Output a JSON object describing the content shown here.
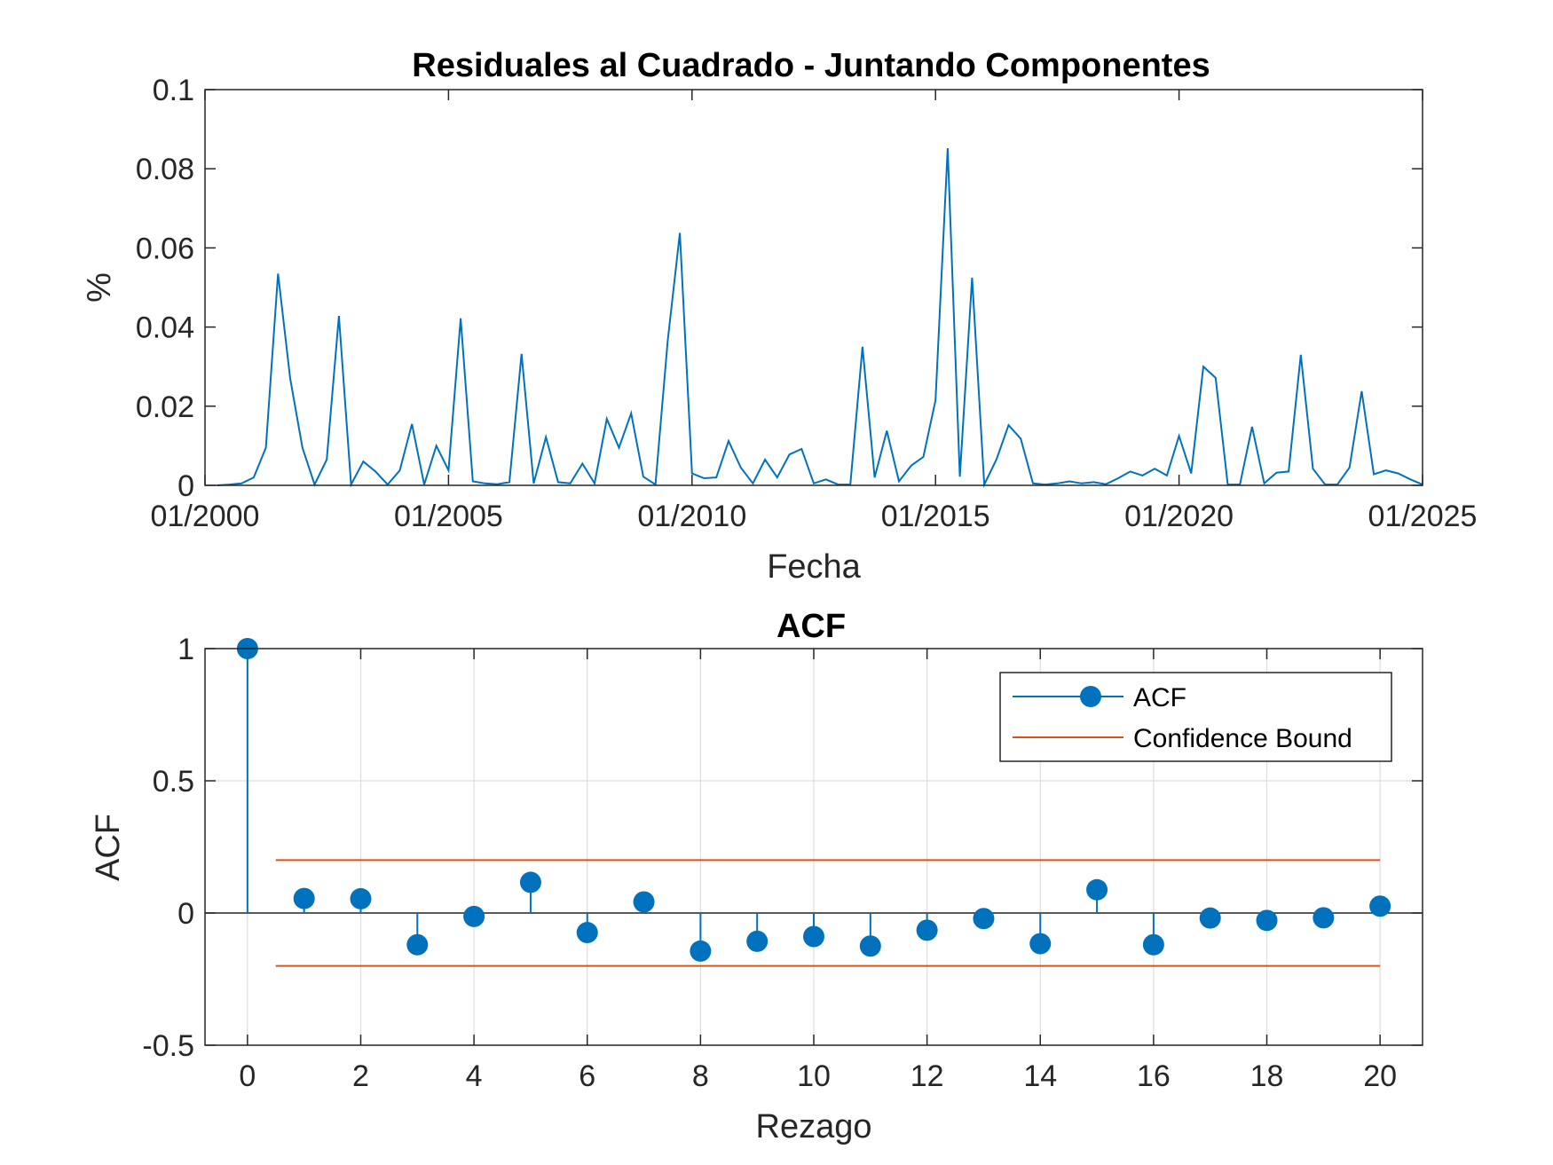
{
  "chart_data": [
    {
      "type": "line",
      "title": "Residuales al Cuadrado - Juntando Componentes",
      "xlabel": "Fecha",
      "ylabel": "%",
      "x_tick_labels": [
        "01/2000",
        "01/2005",
        "01/2010",
        "01/2015",
        "01/2020",
        "01/2025"
      ],
      "y_tick_labels": [
        "0",
        "0.02",
        "0.04",
        "0.06",
        "0.08",
        "0.1"
      ],
      "xlim": [
        "2000-01",
        "2025-01"
      ],
      "ylim": [
        0,
        0.1
      ],
      "grid": false,
      "series": [
        {
          "color": "#0072BD",
          "points": [
            [
              "2000-04",
              0.0
            ],
            [
              "2000-07",
              0.0002
            ],
            [
              "2000-10",
              0.0005
            ],
            [
              "2001-01",
              0.002
            ],
            [
              "2001-04",
              0.0095
            ],
            [
              "2001-07",
              0.0535
            ],
            [
              "2001-10",
              0.027
            ],
            [
              "2002-01",
              0.0095
            ],
            [
              "2002-04",
              0.0002
            ],
            [
              "2002-07",
              0.0065
            ],
            [
              "2002-10",
              0.0428
            ],
            [
              "2003-01",
              0.0002
            ],
            [
              "2003-04",
              0.006
            ],
            [
              "2003-07",
              0.0035
            ],
            [
              "2003-10",
              0.0002
            ],
            [
              "2004-01",
              0.0038
            ],
            [
              "2004-04",
              0.0155
            ],
            [
              "2004-07",
              0.0002
            ],
            [
              "2004-10",
              0.01
            ],
            [
              "2005-01",
              0.0038
            ],
            [
              "2005-04",
              0.0422
            ],
            [
              "2005-07",
              0.001
            ],
            [
              "2005-10",
              0.0005
            ],
            [
              "2006-01",
              0.0003
            ],
            [
              "2006-04",
              0.0008
            ],
            [
              "2006-07",
              0.0332
            ],
            [
              "2006-10",
              0.0005
            ],
            [
              "2007-01",
              0.0122
            ],
            [
              "2007-04",
              0.0008
            ],
            [
              "2007-07",
              0.0005
            ],
            [
              "2007-10",
              0.0055
            ],
            [
              "2008-01",
              0.0005
            ],
            [
              "2008-04",
              0.0168
            ],
            [
              "2008-07",
              0.0095
            ],
            [
              "2008-10",
              0.0182
            ],
            [
              "2009-01",
              0.0022
            ],
            [
              "2009-04",
              0.0002
            ],
            [
              "2009-07",
              0.0365
            ],
            [
              "2009-10",
              0.0638
            ],
            [
              "2010-01",
              0.003
            ],
            [
              "2010-04",
              0.0018
            ],
            [
              "2010-07",
              0.002
            ],
            [
              "2010-10",
              0.0112
            ],
            [
              "2011-01",
              0.0045
            ],
            [
              "2011-04",
              0.0005
            ],
            [
              "2011-07",
              0.0065
            ],
            [
              "2011-10",
              0.002
            ],
            [
              "2012-01",
              0.0078
            ],
            [
              "2012-04",
              0.0092
            ],
            [
              "2012-07",
              0.0005
            ],
            [
              "2012-10",
              0.0015
            ],
            [
              "2013-01",
              0.0002
            ],
            [
              "2013-04",
              0.0002
            ],
            [
              "2013-07",
              0.035
            ],
            [
              "2013-10",
              0.002
            ],
            [
              "2014-01",
              0.0138
            ],
            [
              "2014-04",
              0.001
            ],
            [
              "2014-07",
              0.005
            ],
            [
              "2014-10",
              0.0072
            ],
            [
              "2015-01",
              0.0215
            ],
            [
              "2015-04",
              0.0852
            ],
            [
              "2015-07",
              0.0022
            ],
            [
              "2015-10",
              0.0525
            ],
            [
              "2016-01",
              0.0002
            ],
            [
              "2016-04",
              0.0065
            ],
            [
              "2016-07",
              0.0152
            ],
            [
              "2016-10",
              0.0118
            ],
            [
              "2017-01",
              0.0005
            ],
            [
              "2017-04",
              0.0002
            ],
            [
              "2017-07",
              0.0005
            ],
            [
              "2017-10",
              0.001
            ],
            [
              "2018-01",
              0.0005
            ],
            [
              "2018-04",
              0.0008
            ],
            [
              "2018-07",
              0.0003
            ],
            [
              "2018-10",
              0.0018
            ],
            [
              "2019-01",
              0.0035
            ],
            [
              "2019-04",
              0.0025
            ],
            [
              "2019-07",
              0.0042
            ],
            [
              "2019-10",
              0.0025
            ],
            [
              "2020-01",
              0.0125
            ],
            [
              "2020-04",
              0.003
            ],
            [
              "2020-07",
              0.03
            ],
            [
              "2020-10",
              0.0272
            ],
            [
              "2021-01",
              0.0002
            ],
            [
              "2021-04",
              0.0002
            ],
            [
              "2021-07",
              0.0148
            ],
            [
              "2021-10",
              0.0005
            ],
            [
              "2022-01",
              0.0032
            ],
            [
              "2022-04",
              0.0035
            ],
            [
              "2022-07",
              0.033
            ],
            [
              "2022-10",
              0.0042
            ],
            [
              "2023-01",
              0.0002
            ],
            [
              "2023-04",
              0.0002
            ],
            [
              "2023-07",
              0.0045
            ],
            [
              "2023-10",
              0.0238
            ],
            [
              "2024-01",
              0.0028
            ],
            [
              "2024-04",
              0.0038
            ],
            [
              "2024-07",
              0.003
            ],
            [
              "2024-10",
              0.0015
            ],
            [
              "2025-01",
              0.0002
            ]
          ]
        }
      ]
    },
    {
      "type": "stem",
      "title": "ACF",
      "xlabel": "Rezago",
      "ylabel": "ACF",
      "x_tick_labels": [
        "0",
        "2",
        "4",
        "6",
        "8",
        "10",
        "12",
        "14",
        "16",
        "18",
        "20"
      ],
      "y_tick_labels": [
        "-0.5",
        "0",
        "0.5",
        "1"
      ],
      "xlim": [
        -0.75,
        20.75
      ],
      "ylim": [
        -0.5,
        1
      ],
      "grid": true,
      "legend": {
        "placement": "top-right",
        "entries": [
          "ACF",
          "Confidence Bound"
        ]
      },
      "series": [
        {
          "name": "ACF",
          "color": "#0072BD",
          "lags": [
            0,
            1,
            2,
            3,
            4,
            5,
            6,
            7,
            8,
            9,
            10,
            11,
            12,
            13,
            14,
            15,
            16,
            17,
            18,
            19,
            20
          ],
          "values": [
            1.0,
            0.055,
            0.054,
            -0.12,
            -0.013,
            0.116,
            -0.074,
            0.042,
            -0.144,
            -0.107,
            -0.089,
            -0.125,
            -0.065,
            -0.021,
            -0.116,
            0.088,
            -0.12,
            -0.019,
            -0.028,
            -0.018,
            0.026
          ]
        },
        {
          "name": "Confidence Bound",
          "color": "#D95319",
          "x_range": [
            0.5,
            20
          ],
          "upper": 0.2,
          "lower": -0.2
        }
      ]
    }
  ]
}
